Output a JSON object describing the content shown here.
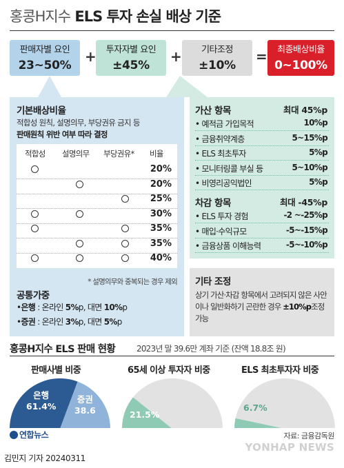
{
  "title": {
    "prefix": "홍콩H지수",
    "main": " ELS 투자 손실 배상 기준"
  },
  "factors": [
    {
      "label": "판매자별 요인",
      "value": "23~50%",
      "color": "#b3d3ea"
    },
    {
      "label": "투자자별 요인",
      "value": "±45%",
      "color": "#bfe3d7"
    },
    {
      "label": "기타조정",
      "value": "±10%",
      "color": "#dcdcdc"
    },
    {
      "label": "최종배상비율",
      "value": "0~100%",
      "color": "#d9202a"
    }
  ],
  "operators": [
    "+",
    "+",
    "="
  ],
  "basic": {
    "heading": "기본배상비율",
    "sub1": "적합성 원칙, 설명의무, 부당권유 금지 등",
    "sub2": "판매원칙 위반 여부 따라 결정",
    "headers": [
      "적합성",
      "설명의무",
      "부당권유*",
      "비율"
    ],
    "rows": [
      {
        "marks": [
          true,
          false,
          false
        ],
        "rate": "20%"
      },
      {
        "marks": [
          false,
          true,
          false
        ],
        "rate": "20%"
      },
      {
        "marks": [
          false,
          false,
          true
        ],
        "rate": "25%"
      },
      {
        "marks": [
          true,
          true,
          false
        ],
        "rate": "30%"
      },
      {
        "marks": [
          true,
          false,
          true
        ],
        "rate": "35%"
      },
      {
        "marks": [
          false,
          true,
          true
        ],
        "rate": "35%"
      },
      {
        "marks": [
          true,
          true,
          true
        ],
        "rate": "40%"
      }
    ],
    "note": "* 설명의무와 중복되는 경우 제외",
    "common_heading": "공통가중",
    "common": [
      {
        "who": "은행",
        "pre": " : 온라인 ",
        "a": "5%",
        "mid": "p, 대면 ",
        "b": "10%",
        "post": "p"
      },
      {
        "who": "증권",
        "pre": " : 온라인 ",
        "a": "3%",
        "mid": "p, 대면 ",
        "b": "5%",
        "post": "p"
      }
    ]
  },
  "add": {
    "heading": "가산 항목",
    "max": "최대 45%p",
    "items": [
      {
        "label": "• 예적금 가입목적",
        "value": "10%p"
      },
      {
        "label": "• 금융취약계층",
        "value": "5~15%p"
      },
      {
        "label": "• ELS 최초투자",
        "value": "5%p"
      },
      {
        "label": "• 모니터링콜 부실 등",
        "value": "5~10%p"
      },
      {
        "label": "• 비영리공익법인",
        "value": "5%p"
      }
    ]
  },
  "sub": {
    "heading": "차감 항목",
    "max": "최대 -45%p",
    "items": [
      {
        "label": "• ELS 투자 경험",
        "value": "-2 ~-25%p"
      },
      {
        "label": "• 매입·수익규모",
        "value": "-5~-15%p"
      },
      {
        "label": "• 금융상품 이해능력",
        "value": "-5~-10%p"
      }
    ]
  },
  "misc": {
    "heading": "기타 조정",
    "text1": "상기 가산·차감 항목에서 고려되지 않은 사안이나 일반화하기 곤란한 경우 ",
    "bold": "±10%p",
    "text2": "조정 가능"
  },
  "sales": {
    "title": "홍콩H지수 ELS 판매 현황",
    "subtitle": "2023년 말 39.6만 계좌 기준 (잔액 18.8조 원)"
  },
  "chart_data": [
    {
      "type": "pie",
      "title": "판매사별 비중",
      "slices": [
        {
          "name": "은행",
          "value": 61.4,
          "color": "#2c5a92"
        },
        {
          "name": "증권",
          "value": 38.6,
          "color": "#8fb3d9"
        }
      ]
    },
    {
      "type": "pie",
      "title": "65세 이상 투자자 비중",
      "slices": [
        {
          "name": "",
          "value": 21.5,
          "color": "#8fcab5"
        },
        {
          "name": "",
          "value": 78.5,
          "color": "#e2e2e2"
        }
      ]
    },
    {
      "type": "pie",
      "title": "ELS 최초투자자 비중",
      "slices": [
        {
          "name": "",
          "value": 6.7,
          "color": "#8fcab5"
        },
        {
          "name": "",
          "value": 93.3,
          "color": "#e2e2e2"
        }
      ]
    }
  ],
  "pie_labels": {
    "p1a_name": "은행",
    "p1a_val": "61.4%",
    "p1b_name": "증권",
    "p1b_val": "38.6",
    "p2": "21.5%",
    "p3": "6.7%"
  },
  "source": "자료: 금융감독원",
  "logo": "연합뉴스",
  "author": "김민지 기자  20240311",
  "watermark": "YONHAP NEWS"
}
